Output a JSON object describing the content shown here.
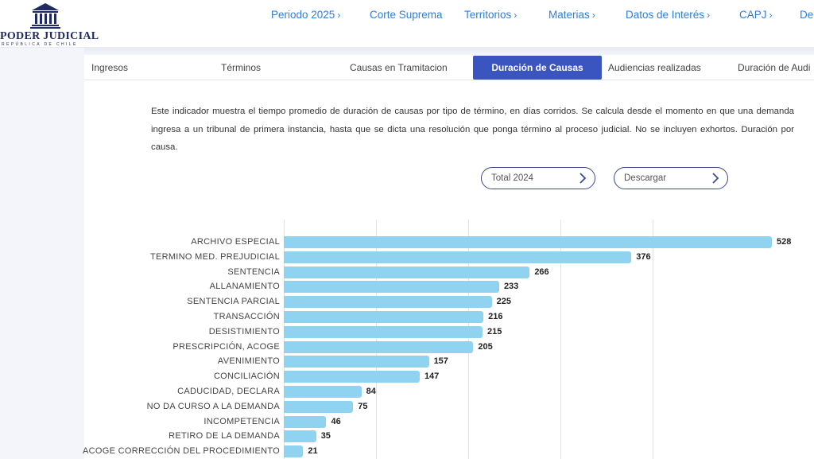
{
  "header": {
    "logo": {
      "title": "PODER JUDICIAL",
      "subtitle": "REPÚBLICA DE CHILE"
    },
    "nav": [
      {
        "label": "Periodo 2025",
        "chevron": true
      },
      {
        "label": "Corte Suprema",
        "chevron": false
      },
      {
        "label": "Territorios",
        "chevron": true
      },
      {
        "label": "Materias",
        "chevron": true
      },
      {
        "label": "Datos de Interés",
        "chevron": true
      },
      {
        "label": "CAPJ",
        "chevron": true
      },
      {
        "label": "De",
        "chevron": false
      }
    ]
  },
  "tabs": [
    {
      "label": "Ingresos",
      "active": false
    },
    {
      "label": "Términos",
      "active": false
    },
    {
      "label": "Causas en Tramitacion",
      "active": false
    },
    {
      "label": "Duración de Causas",
      "active": true
    },
    {
      "label": "Audiencias realizadas",
      "active": false
    },
    {
      "label": "Duración de Audi",
      "active": false
    }
  ],
  "description": "Este indicador muestra el tiempo promedio de duración de causas por tipo de término, en días corridos. Se calcula desde el momento en que una demanda ingresa a un tribunal de primera instancia, hasta que se dicta una resolución que ponga término al proceso judicial. No se incluyen exhortos. Duración por causa.",
  "buttons": {
    "period": {
      "label": "Total 2024",
      "icon": "chevron-right-icon"
    },
    "download": {
      "label": "Descargar",
      "icon": "chevron-right-icon"
    }
  },
  "colors": {
    "nav_link": "#2f7ed8",
    "tab_active": "#3b55c0",
    "bar": "#8fd3f1",
    "logo": "#1f2a5e"
  },
  "chart_data": {
    "type": "bar",
    "orientation": "horizontal",
    "categories": [
      "ARCHIVO ESPECIAL",
      "TERMINO MED. PREJUDICIAL",
      "SENTENCIA",
      "ALLANAMIENTO",
      "SENTENCIA PARCIAL",
      "TRANSACCIÓN",
      "DESISTIMIENTO",
      "PRESCRIPCIÓN, ACOGE",
      "AVENIMIENTO",
      "CONCILIACIÓN",
      "CADUCIDAD, DECLARA",
      "NO DA CURSO A LA DEMANDA",
      "INCOMPETENCIA",
      "RETIRO DE LA DEMANDA",
      "ACOGE CORRECCIÓN DEL PROCEDIMIENTO"
    ],
    "values": [
      528,
      376,
      266,
      233,
      225,
      216,
      215,
      205,
      157,
      147,
      84,
      75,
      46,
      35,
      21
    ],
    "xlim": [
      0,
      600
    ],
    "grid": true,
    "data_labels": true
  }
}
